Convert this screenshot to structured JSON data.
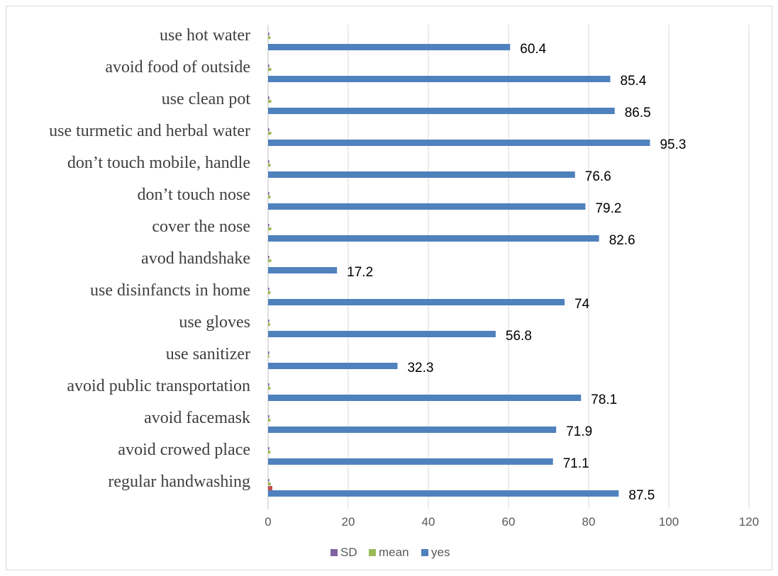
{
  "chart_data": {
    "type": "bar",
    "orientation": "horizontal",
    "categories": [
      "regular handwashing",
      "avoid crowed place",
      "avoid facemask",
      "avoid public transportation",
      "use sanitizer",
      "use gloves",
      "use disinfancts in home",
      "avod handshake",
      "cover the nose",
      "don’t touch nose",
      "don’t touch mobile, handle",
      "use turmetic and herbal water",
      "use clean pot",
      "avoid food of outside",
      "use hot water"
    ],
    "series": [
      {
        "name": "SD",
        "color": "#8064a2",
        "values": [
          0.3,
          0.3,
          0.3,
          0.3,
          0.3,
          0.3,
          0.3,
          0.3,
          0.3,
          0.3,
          0.3,
          0.3,
          0.3,
          0.3,
          0.3
        ]
      },
      {
        "name": "mean",
        "color": "#9bbb59",
        "values": [
          0.7,
          0.6,
          0.6,
          0.6,
          0.3,
          0.5,
          0.6,
          0.8,
          0.8,
          0.6,
          0.6,
          0.8,
          0.8,
          0.8,
          0.6
        ]
      },
      {
        "name": "yes",
        "color": "#4f81bd",
        "values": [
          87.5,
          71.1,
          71.9,
          78.1,
          32.3,
          56.8,
          74,
          17.2,
          82.6,
          79.2,
          76.6,
          95.3,
          86.5,
          85.4,
          60.4
        ]
      }
    ],
    "data_labels": [
      "87.5",
      "71.1",
      "71.9",
      "78.1",
      "32.3",
      "56.8",
      "74",
      "17.2",
      "82.6",
      "79.2",
      "76.6",
      "95.3",
      "86.5",
      "85.4",
      "60.4"
    ],
    "xlim": [
      0,
      120
    ],
    "x_ticks": [
      "0",
      "20",
      "40",
      "60",
      "80",
      "100",
      "120"
    ],
    "grid": "vertical",
    "legend": {
      "position": "bottom",
      "entries": [
        "SD",
        "mean",
        "yes"
      ]
    },
    "accent_colors": {
      "first_row_marker": "#c0504d"
    }
  }
}
